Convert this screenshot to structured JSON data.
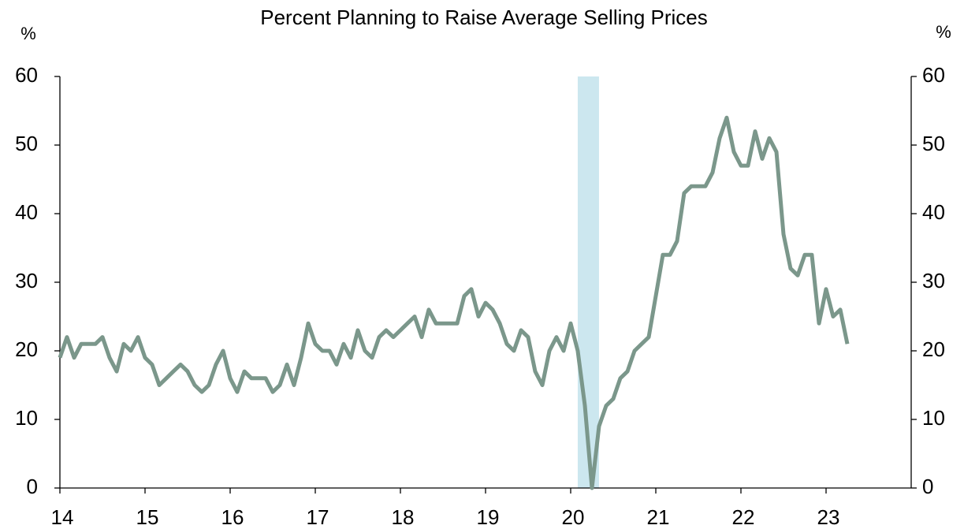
{
  "chart_data": {
    "type": "line",
    "title": "Percent Planning to Raise Average Selling Prices",
    "y_label": "%",
    "y2_label": "%",
    "x": [
      14,
      14.083,
      14.167,
      14.25,
      14.333,
      14.417,
      14.5,
      14.583,
      14.667,
      14.75,
      14.833,
      14.917,
      15,
      15.083,
      15.167,
      15.25,
      15.333,
      15.417,
      15.5,
      15.583,
      15.667,
      15.75,
      15.833,
      15.917,
      16,
      16.083,
      16.167,
      16.25,
      16.333,
      16.417,
      16.5,
      16.583,
      16.667,
      16.75,
      16.833,
      16.917,
      17,
      17.083,
      17.167,
      17.25,
      17.333,
      17.417,
      17.5,
      17.583,
      17.667,
      17.75,
      17.833,
      17.917,
      18,
      18.083,
      18.167,
      18.25,
      18.333,
      18.417,
      18.5,
      18.583,
      18.667,
      18.75,
      18.833,
      18.917,
      19,
      19.083,
      19.167,
      19.25,
      19.333,
      19.417,
      19.5,
      19.583,
      19.667,
      19.75,
      19.833,
      19.917,
      20,
      20.083,
      20.167,
      20.25,
      20.333,
      20.417,
      20.5,
      20.583,
      20.667,
      20.75,
      20.833,
      20.917,
      21,
      21.083,
      21.167,
      21.25,
      21.333,
      21.417,
      21.5,
      21.583,
      21.667,
      21.75,
      21.833,
      21.917,
      22,
      22.083,
      22.167,
      22.25,
      22.333,
      22.417,
      22.5,
      22.583,
      22.667,
      22.75,
      22.833,
      22.917,
      23,
      23.083,
      23.167,
      23.25
    ],
    "series": [
      {
        "name": "Percent Planning to Raise Average Selling Prices",
        "color": "#7b978b",
        "values": [
          19,
          22,
          19,
          21,
          21,
          21,
          22,
          19,
          17,
          21,
          20,
          22,
          19,
          18,
          15,
          16,
          17,
          18,
          17,
          15,
          14,
          15,
          18,
          20,
          16,
          14,
          17,
          16,
          16,
          16,
          14,
          15,
          18,
          15,
          19,
          24,
          21,
          20,
          20,
          18,
          21,
          19,
          23,
          20,
          19,
          22,
          23,
          22,
          23,
          24,
          25,
          22,
          26,
          24,
          24,
          24,
          24,
          28,
          29,
          25,
          27,
          26,
          24,
          21,
          20,
          23,
          22,
          17,
          15,
          20,
          22,
          20,
          24,
          20,
          12,
          0,
          9,
          12,
          13,
          16,
          17,
          20,
          21,
          22,
          28,
          34,
          34,
          36,
          43,
          44,
          44,
          44,
          46,
          51,
          54,
          49,
          47,
          47,
          52,
          48,
          51,
          49,
          37,
          32,
          31,
          34,
          34,
          24,
          29,
          25,
          26,
          21
        ]
      }
    ],
    "shaded_regions": [
      [
        20.083,
        20.333
      ]
    ],
    "shade_color": "#cce7ef",
    "xlim": [
      14,
      24
    ],
    "xticks": [
      14,
      15,
      16,
      17,
      18,
      19,
      20,
      21,
      22,
      23
    ],
    "ylim": [
      0,
      60
    ],
    "yticks": [
      0,
      10,
      20,
      30,
      40,
      50,
      60
    ],
    "y2lim": [
      0,
      60
    ],
    "y2ticks": [
      0,
      10,
      20,
      30,
      40,
      50,
      60
    ],
    "grid": false
  }
}
